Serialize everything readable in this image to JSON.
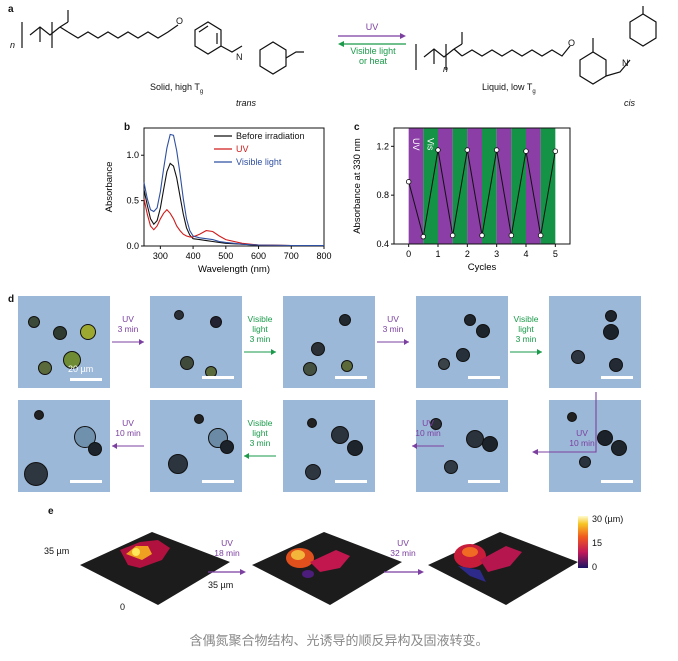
{
  "panel_a": {
    "letter": "a",
    "left_label": "Solid, high T",
    "left_label_sub": "g",
    "left_isomer": "trans",
    "right_label": "Liquid, low T",
    "right_label_sub": "g",
    "right_isomer": "cis",
    "forward_label": "UV",
    "reverse_label_line1": "Visible light",
    "reverse_label_line2": "or heat",
    "subscript_n": "n",
    "atom_O": "O",
    "atom_N": "N"
  },
  "panel_b": {
    "letter": "b",
    "chart_data": {
      "type": "line",
      "xlabel": "Wavelength (nm)",
      "ylabel": "Absorbance",
      "xlim": [
        250,
        800
      ],
      "ylim": [
        0,
        1.3
      ],
      "xticks": [
        "300",
        "400",
        "500",
        "600",
        "700",
        "800"
      ],
      "yticks": [
        "0.0",
        "0.5",
        "1.0"
      ],
      "legend_position": "top-right",
      "series": [
        {
          "name": "Before irradiation",
          "color": "#111111",
          "x": [
            250,
            260,
            270,
            280,
            290,
            300,
            310,
            320,
            330,
            340,
            350,
            360,
            370,
            380,
            390,
            400,
            420,
            440,
            460,
            480,
            500,
            550,
            600,
            700,
            800
          ],
          "y": [
            0.62,
            0.45,
            0.3,
            0.24,
            0.28,
            0.42,
            0.62,
            0.82,
            0.91,
            0.88,
            0.75,
            0.55,
            0.35,
            0.2,
            0.12,
            0.08,
            0.07,
            0.06,
            0.05,
            0.04,
            0.03,
            0.02,
            0.01,
            0.005,
            0.005
          ]
        },
        {
          "name": "UV",
          "color": "#d01c1c",
          "x": [
            250,
            260,
            270,
            280,
            290,
            300,
            310,
            320,
            330,
            340,
            350,
            360,
            370,
            380,
            390,
            400,
            420,
            440,
            460,
            480,
            500,
            550,
            600,
            700,
            800
          ],
          "y": [
            0.52,
            0.35,
            0.22,
            0.18,
            0.22,
            0.3,
            0.36,
            0.4,
            0.36,
            0.3,
            0.22,
            0.17,
            0.13,
            0.11,
            0.1,
            0.1,
            0.13,
            0.17,
            0.16,
            0.11,
            0.07,
            0.03,
            0.01,
            0.005,
            0.005
          ]
        },
        {
          "name": "Visible light",
          "color": "#2f4fa0",
          "x": [
            250,
            260,
            270,
            280,
            290,
            300,
            310,
            320,
            330,
            340,
            350,
            360,
            370,
            380,
            390,
            400,
            420,
            440,
            460,
            480,
            500,
            550,
            600,
            700,
            800
          ],
          "y": [
            0.7,
            0.52,
            0.4,
            0.38,
            0.42,
            0.6,
            0.85,
            1.08,
            1.23,
            1.22,
            1.05,
            0.8,
            0.52,
            0.3,
            0.17,
            0.11,
            0.09,
            0.08,
            0.07,
            0.05,
            0.04,
            0.02,
            0.01,
            0.005,
            0.005
          ]
        }
      ]
    }
  },
  "panel_c": {
    "letter": "c",
    "chart_data": {
      "type": "line",
      "xlabel": "Cycles",
      "ylabel": "Absorbance at 330 nm",
      "xlim": [
        -0.5,
        5.5
      ],
      "ylim": [
        0.4,
        1.35
      ],
      "xticks": [
        "0",
        "1",
        "2",
        "3",
        "4",
        "5"
      ],
      "yticks": [
        "0.4",
        "0.8",
        "1.2"
      ],
      "band_labels": [
        "UV",
        "Vis"
      ],
      "band_colors": {
        "uv": "#8a3ea6",
        "vis": "#149346"
      },
      "x": [
        0,
        0.5,
        1,
        1.5,
        2,
        2.5,
        3,
        3.5,
        4,
        4.5,
        5
      ],
      "y": [
        0.91,
        0.46,
        1.17,
        0.47,
        1.17,
        0.47,
        1.17,
        0.47,
        1.16,
        0.47,
        1.16
      ]
    }
  },
  "panel_d": {
    "letter": "d",
    "scale_label": "20 µm",
    "steps": [
      {
        "line1": "UV",
        "line2": "3 min",
        "line3": "",
        "kind": "uv"
      },
      {
        "line1": "Visible",
        "line2": "light",
        "line3": "3 min",
        "kind": "vis"
      },
      {
        "line1": "UV",
        "line2": "3 min",
        "line3": "",
        "kind": "uv"
      },
      {
        "line1": "Visible",
        "line2": "light",
        "line3": "3 min",
        "kind": "vis"
      },
      {
        "line1": "UV",
        "line2": "10 min",
        "line3": "",
        "kind": "uv"
      },
      {
        "line1": "UV",
        "line2": "10 min",
        "line3": "",
        "kind": "uv"
      },
      {
        "line1": "Visible",
        "line2": "light",
        "line3": "3 min",
        "kind": "vis"
      },
      {
        "line1": "UV",
        "line2": "10 min",
        "line3": "",
        "kind": "uv"
      }
    ]
  },
  "panel_e": {
    "letter": "e",
    "y_extent": "35 µm",
    "x_extent": "35 µm",
    "z_zero": "0",
    "colorbar_max": "30 (µm)",
    "colorbar_mid": "15",
    "colorbar_min": "0",
    "step1_line1": "UV",
    "step1_line2": "18 min",
    "step2_line1": "UV",
    "step2_line2": "32 min"
  },
  "caption": "含偶氮聚合物结构、光诱导的顺反异构及固液转变。"
}
